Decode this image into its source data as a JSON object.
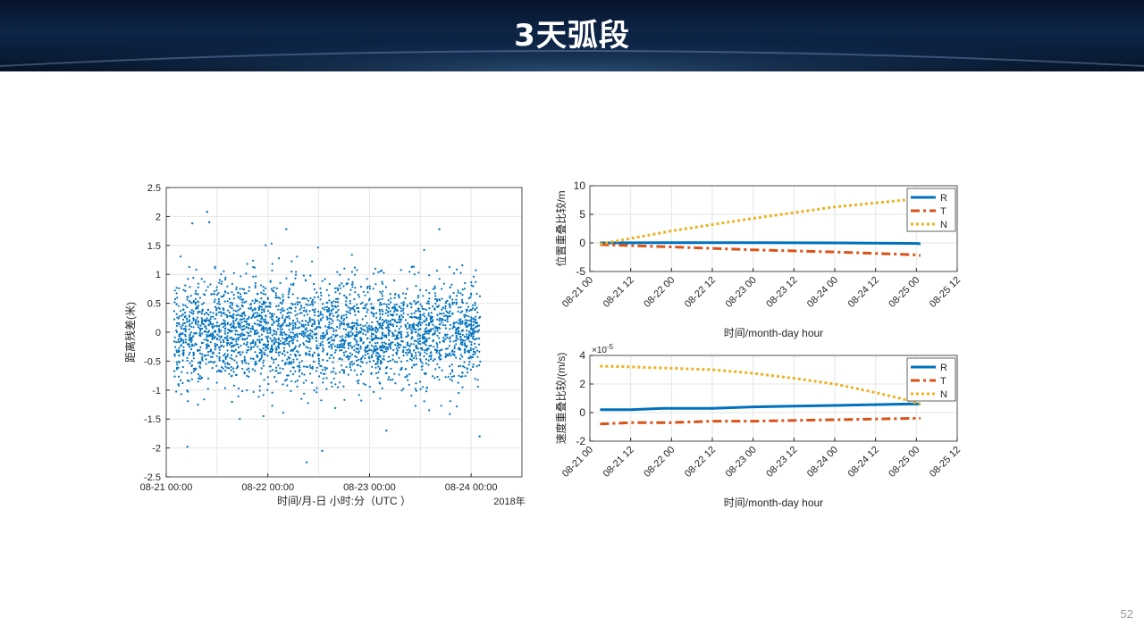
{
  "slide": {
    "title": "3天弧段",
    "page_number": "52"
  },
  "colors": {
    "series_blue": "#0072BD",
    "series_orange": "#D95319",
    "series_yellow": "#EDB120",
    "grid": "#e6e6e6",
    "axis": "#262626"
  },
  "chart_data": [
    {
      "type": "scatter",
      "title": "",
      "xlabel": "时间/月-日 小时:分（UTC ）",
      "ylabel": "距离残差(米)",
      "year_label": "2018年",
      "xlim": [
        "08-21 00:00",
        "08-24 12:00"
      ],
      "ylim": [
        -2.5,
        2.5
      ],
      "x_ticks": [
        "08-21 00:00",
        "08-22 00:00",
        "08-23 00:00",
        "08-24 00:00"
      ],
      "y_ticks": [
        "2.5",
        "2",
        "1.5",
        "1",
        "0.5",
        "0",
        "-0.5",
        "-1",
        "-1.5",
        "-2",
        "-2.5"
      ],
      "grid": true,
      "data_x_range": [
        "08-21 02:00",
        "08-24 02:00"
      ],
      "approx_std": 0.45,
      "outliers": [
        {
          "x": "08-21 09:40",
          "y": 2.08
        },
        {
          "x": "08-21 10:10",
          "y": 1.9
        },
        {
          "x": "08-21 06:10",
          "y": 1.88
        },
        {
          "x": "08-22 04:20",
          "y": 1.78
        },
        {
          "x": "08-23 16:30",
          "y": 1.78
        },
        {
          "x": "08-21 05:00",
          "y": -1.98
        },
        {
          "x": "08-22 09:10",
          "y": -2.25
        },
        {
          "x": "08-22 12:50",
          "y": -2.05
        },
        {
          "x": "08-23 04:00",
          "y": -1.7
        },
        {
          "x": "08-24 02:00",
          "y": -1.8
        }
      ]
    },
    {
      "type": "line",
      "title": "",
      "xlabel": "时间/month-day hour",
      "ylabel": "位置重叠比较/m",
      "xlim": [
        "08-21 00",
        "08-25 12"
      ],
      "ylim": [
        -5,
        10
      ],
      "x_ticks": [
        "08-21 00",
        "08-21 12",
        "08-22 00",
        "08-22 12",
        "08-23 00",
        "08-23 12",
        "08-24 00",
        "08-24 12",
        "08-25 00",
        "08-25 12"
      ],
      "y_ticks": [
        "10",
        "5",
        "0",
        "-5"
      ],
      "grid": true,
      "legend_position": "top-right",
      "series": [
        {
          "name": "R",
          "style": "solid",
          "x": [
            0.125,
            1,
            2,
            3,
            4,
            4.05
          ],
          "values": [
            0,
            0.05,
            0.05,
            0,
            -0.1,
            -0.15
          ]
        },
        {
          "name": "T",
          "style": "dashdot",
          "x": [
            0.125,
            1,
            2,
            3,
            4,
            4.05
          ],
          "values": [
            -0.3,
            -0.7,
            -1.2,
            -1.6,
            -2.1,
            -2.2
          ]
        },
        {
          "name": "N",
          "style": "dotted",
          "x": [
            0.125,
            1,
            2,
            3,
            4,
            4.05
          ],
          "values": [
            -0.2,
            2.1,
            4.3,
            6.3,
            7.7,
            7.8
          ]
        }
      ]
    },
    {
      "type": "line",
      "title": "",
      "xlabel": "时间/month-day hour",
      "ylabel": "速度重叠比较/(m/s)",
      "y_exponent_label": "×10",
      "y_exponent_value": "-5",
      "xlim": [
        "08-21 00",
        "08-25 12"
      ],
      "ylim": [
        -2,
        4
      ],
      "x_ticks": [
        "08-21 00",
        "08-21 12",
        "08-22 00",
        "08-22 12",
        "08-23 00",
        "08-23 12",
        "08-24 00",
        "08-24 12",
        "08-25 00",
        "08-25 12"
      ],
      "y_ticks": [
        "4",
        "2",
        "0",
        "-2"
      ],
      "grid": true,
      "legend_position": "top-right",
      "series": [
        {
          "name": "R",
          "style": "solid",
          "x": [
            0.125,
            0.5,
            0.9,
            1.5,
            2.0,
            2.5,
            3.0,
            3.4,
            3.9,
            4.05
          ],
          "values": [
            0.2,
            0.2,
            0.3,
            0.3,
            0.4,
            0.45,
            0.5,
            0.55,
            0.6,
            0.6
          ]
        },
        {
          "name": "T",
          "style": "dashdot",
          "x": [
            0.125,
            0.5,
            1.0,
            1.5,
            2.0,
            2.5,
            3.0,
            3.5,
            4.0,
            4.05
          ],
          "values": [
            -0.8,
            -0.7,
            -0.7,
            -0.6,
            -0.6,
            -0.55,
            -0.5,
            -0.45,
            -0.4,
            -0.4
          ]
        },
        {
          "name": "N",
          "style": "dotted",
          "x": [
            0.125,
            0.5,
            1.0,
            1.5,
            2.0,
            2.5,
            3.0,
            3.5,
            3.8,
            4.05
          ],
          "values": [
            3.25,
            3.2,
            3.1,
            3.0,
            2.75,
            2.4,
            2.0,
            1.4,
            1.0,
            0.6
          ]
        }
      ]
    }
  ]
}
